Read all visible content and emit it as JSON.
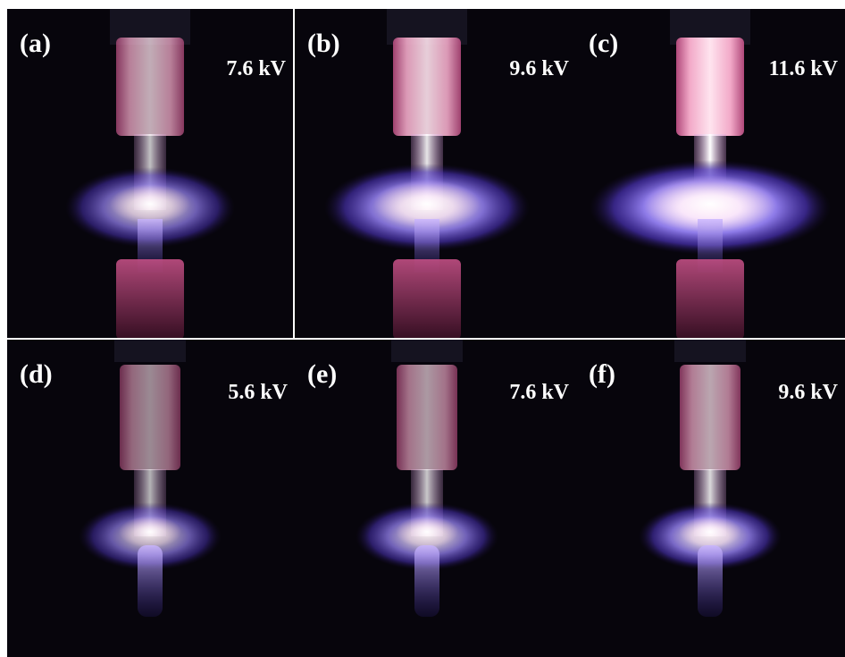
{
  "panels": [
    {
      "label": "(a)",
      "voltage": "7.6 kV"
    },
    {
      "label": "(b)",
      "voltage": "9.6 kV"
    },
    {
      "label": "(c)",
      "voltage": "11.6 kV"
    },
    {
      "label": "(d)",
      "voltage": "5.6 kV"
    },
    {
      "label": "(e)",
      "voltage": "7.6 kV"
    },
    {
      "label": "(f)",
      "voltage": "9.6 kV"
    }
  ]
}
